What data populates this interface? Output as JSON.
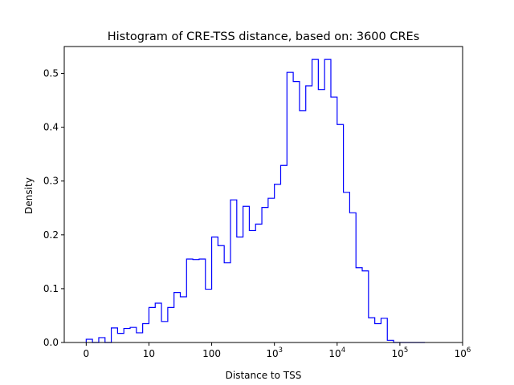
{
  "chart_data": {
    "type": "histogram",
    "title": "Histogram of CRE-TSS distance, based on: 3600 CREs",
    "xlabel": "Distance to TSS",
    "ylabel": "Density",
    "xscale": "symlog",
    "xlim_decades": [
      -0.35,
      6.0
    ],
    "ylim": [
      0,
      0.55
    ],
    "grid": false,
    "legend": "none",
    "line_color": "#0000ff",
    "x_ticks": [
      {
        "label": "0",
        "decade": 0
      },
      {
        "label": "10",
        "decade": 1
      },
      {
        "label": "100",
        "decade": 2
      },
      {
        "label": "10",
        "sup": "3",
        "decade": 3
      },
      {
        "label": "10",
        "sup": "4",
        "decade": 4
      },
      {
        "label": "10",
        "sup": "5",
        "decade": 5
      },
      {
        "label": "10",
        "sup": "6",
        "decade": 6
      }
    ],
    "y_ticks": [
      {
        "label": "0.0",
        "value": 0.0
      },
      {
        "label": "0.1",
        "value": 0.1
      },
      {
        "label": "0.2",
        "value": 0.2
      },
      {
        "label": "0.3",
        "value": 0.3
      },
      {
        "label": "0.4",
        "value": 0.4
      },
      {
        "label": "0.5",
        "value": 0.5
      }
    ],
    "bin_edges_decades": [
      0.0,
      0.1,
      0.2,
      0.3,
      0.4,
      0.5,
      0.6,
      0.7,
      0.8,
      0.9,
      1.0,
      1.1,
      1.2,
      1.3,
      1.4,
      1.5,
      1.6,
      1.7,
      1.8,
      1.9,
      2.0,
      2.1,
      2.2,
      2.3,
      2.4,
      2.5,
      2.6,
      2.7,
      2.8,
      2.9,
      3.0,
      3.1,
      3.2,
      3.3,
      3.4,
      3.5,
      3.6,
      3.7,
      3.8,
      3.9,
      4.0,
      4.1,
      4.2,
      4.3,
      4.4,
      4.5,
      4.6,
      4.7,
      4.8,
      4.9,
      5.0,
      5.1,
      5.2,
      5.3,
      5.4
    ],
    "densities": [
      0.006,
      0.0,
      0.009,
      0.0,
      0.027,
      0.017,
      0.026,
      0.028,
      0.018,
      0.035,
      0.065,
      0.073,
      0.039,
      0.065,
      0.093,
      0.085,
      0.155,
      0.154,
      0.155,
      0.099,
      0.196,
      0.18,
      0.148,
      0.265,
      0.196,
      0.253,
      0.208,
      0.22,
      0.251,
      0.268,
      0.294,
      0.329,
      0.502,
      0.485,
      0.431,
      0.477,
      0.526,
      0.47,
      0.526,
      0.456,
      0.405,
      0.279,
      0.241,
      0.139,
      0.133,
      0.046,
      0.035,
      0.045,
      0.004,
      0.0,
      0.0,
      0.0,
      0.0,
      0.0
    ]
  }
}
